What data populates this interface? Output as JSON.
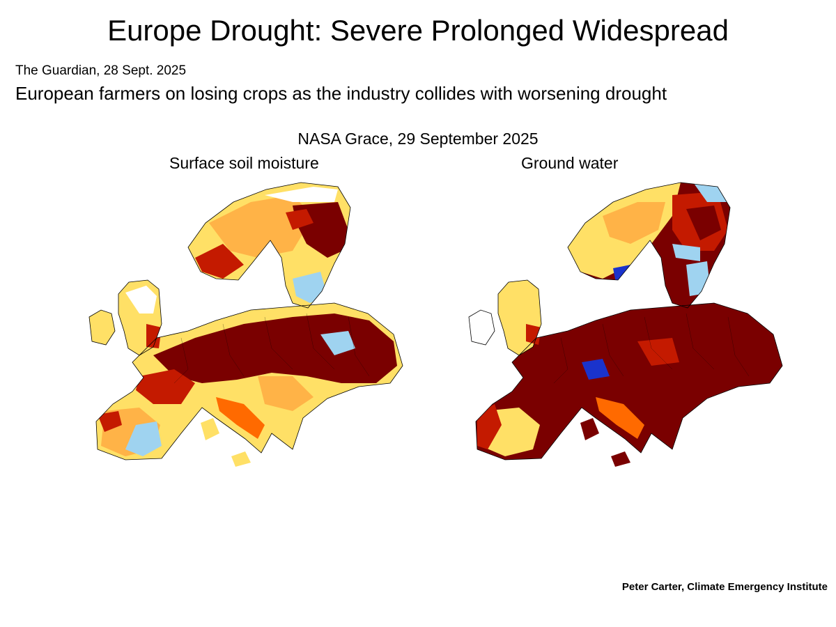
{
  "title": "Europe Drought: Severe Prolonged Widespread",
  "source": "The Guardian, 28 Sept. 2025",
  "headline": "European farmers on losing crops as the industry collides with worsening drought",
  "map_header": "NASA Grace,  29 September 2025",
  "maps": [
    {
      "label": "Surface soil moisture",
      "icon": "europe-drought-map-surface-soil-moisture"
    },
    {
      "label": "Ground water",
      "icon": "europe-drought-map-ground-water"
    }
  ],
  "credit": "Peter Carter, Climate Emergency Institute",
  "colors": {
    "extreme_dry": "#7a0000",
    "severe_dry": "#c41a00",
    "moderate_dry": "#ff6a00",
    "mild_dry": "#ffb347",
    "slight_dry": "#ffe066",
    "near_normal": "#ffffff",
    "wet": "#9fd3f0",
    "very_wet": "#1a33cc"
  }
}
